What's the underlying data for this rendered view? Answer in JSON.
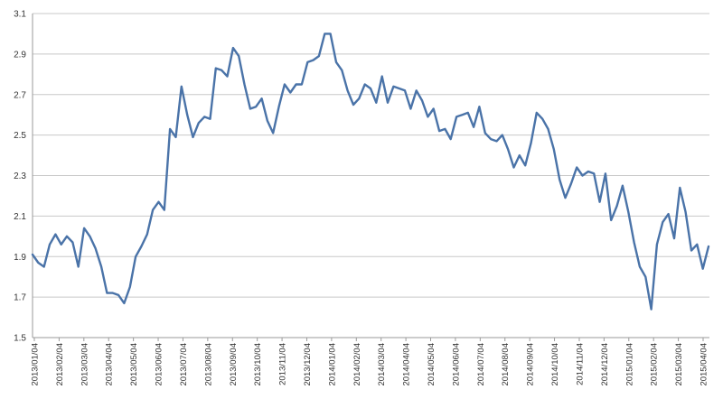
{
  "chart_data": {
    "type": "line",
    "title": "",
    "xlabel": "",
    "ylabel": "",
    "ylim": [
      1.5,
      3.1
    ],
    "yticks": [
      "1.5",
      "1.7",
      "1.9",
      "2.1",
      "2.3",
      "2.5",
      "2.7",
      "2.9",
      "3.1"
    ],
    "grid": true,
    "legend": "none",
    "colors": {
      "line": "#4a73a8",
      "grid": "#c8c8c8",
      "axis": "#9a9a9a"
    },
    "xtick_labels": [
      "2013/01/04",
      "2013/02/04",
      "2013/03/04",
      "2013/04/04",
      "2013/05/04",
      "2013/06/04",
      "2013/07/04",
      "2013/08/04",
      "2013/09/04",
      "2013/10/04",
      "2013/11/04",
      "2013/12/04",
      "2014/01/04",
      "2014/02/04",
      "2014/03/04",
      "2014/04/04",
      "2014/05/04",
      "2014/06/04",
      "2014/07/04",
      "2014/08/04",
      "2014/09/04",
      "2014/10/04",
      "2014/11/04",
      "2014/12/04",
      "2015/01/04",
      "2015/02/04",
      "2015/03/04",
      "2015/04/04"
    ],
    "series": [
      {
        "values": [
          1.91,
          1.87,
          1.85,
          1.96,
          2.01,
          1.96,
          2.0,
          1.97,
          1.85,
          2.04,
          2.0,
          1.94,
          1.85,
          1.72,
          1.72,
          1.71,
          1.67,
          1.75,
          1.9,
          1.95,
          2.01,
          2.13,
          2.17,
          2.13,
          2.53,
          2.49,
          2.74,
          2.6,
          2.49,
          2.56,
          2.59,
          2.58,
          2.83,
          2.82,
          2.79,
          2.93,
          2.89,
          2.75,
          2.63,
          2.64,
          2.68,
          2.57,
          2.51,
          2.64,
          2.75,
          2.71,
          2.75,
          2.75,
          2.86,
          2.87,
          2.89,
          3.0,
          3.0,
          2.86,
          2.82,
          2.72,
          2.65,
          2.68,
          2.75,
          2.73,
          2.66,
          2.79,
          2.66,
          2.74,
          2.73,
          2.72,
          2.63,
          2.72,
          2.67,
          2.59,
          2.63,
          2.52,
          2.53,
          2.48,
          2.59,
          2.6,
          2.61,
          2.54,
          2.64,
          2.51,
          2.48,
          2.47,
          2.5,
          2.43,
          2.34,
          2.4,
          2.35,
          2.46,
          2.61,
          2.58,
          2.53,
          2.43,
          2.28,
          2.19,
          2.26,
          2.34,
          2.3,
          2.32,
          2.31,
          2.17,
          2.31,
          2.08,
          2.15,
          2.25,
          2.12,
          1.97,
          1.85,
          1.8,
          1.64,
          1.96,
          2.07,
          2.11,
          1.99,
          2.24,
          2.12,
          1.93,
          1.96,
          1.84,
          1.95
        ]
      }
    ]
  }
}
